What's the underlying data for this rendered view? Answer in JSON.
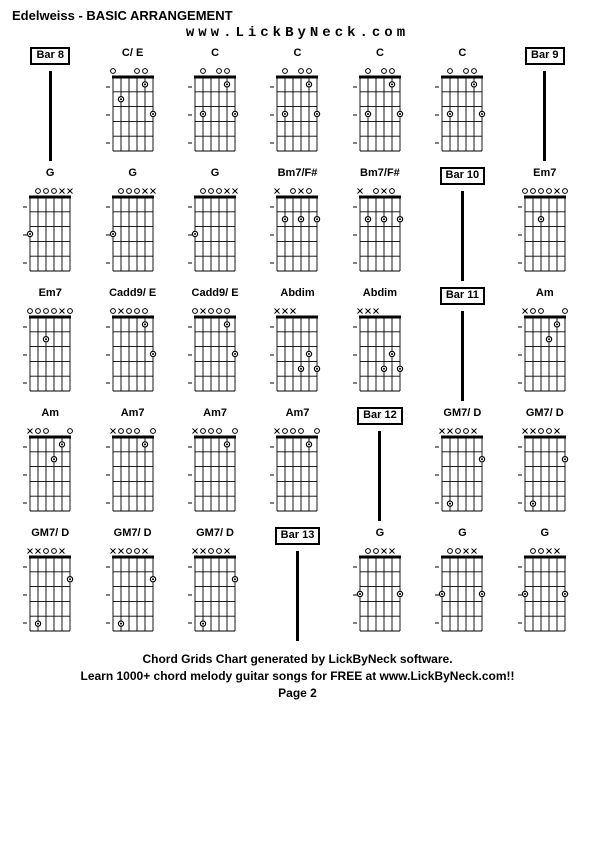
{
  "title": "Edelweiss - BASIC ARRANGEMENT",
  "subtitle": "www.LickByNeck.com",
  "footer1": "Chord Grids Chart generated by LickByNeck software.",
  "footer2": "Learn 1000+ chord melody guitar songs for FREE at www.LickByNeck.com!!",
  "pageNum": "Page 2",
  "style": {
    "cols": 7,
    "rows": 5,
    "frets": 5,
    "strings": 6,
    "dot_radius": 2.6,
    "grid_stroke": "#000000",
    "grid_width": 0.9,
    "nut_width": 3,
    "bg": "#ffffff"
  },
  "cells": [
    {
      "type": "bar",
      "label": "Bar 8"
    },
    {
      "type": "chord",
      "label": "C/ E",
      "top": "O  OO ",
      "dots": [
        [
          5,
          2
        ],
        [
          2,
          1
        ],
        [
          1,
          3
        ]
      ]
    },
    {
      "type": "chord",
      "label": "C",
      "top": " O OO ",
      "dots": [
        [
          5,
          3
        ],
        [
          2,
          1
        ],
        [
          1,
          3
        ]
      ]
    },
    {
      "type": "chord",
      "label": "C",
      "top": " O OO ",
      "dots": [
        [
          5,
          3
        ],
        [
          2,
          1
        ],
        [
          1,
          3
        ]
      ]
    },
    {
      "type": "chord",
      "label": "C",
      "top": " O OO ",
      "dots": [
        [
          5,
          3
        ],
        [
          2,
          1
        ],
        [
          1,
          3
        ]
      ]
    },
    {
      "type": "chord",
      "label": "C",
      "top": " O OO ",
      "dots": [
        [
          5,
          3
        ],
        [
          2,
          1
        ],
        [
          1,
          3
        ]
      ]
    },
    {
      "type": "bar",
      "label": "Bar 9"
    },
    {
      "type": "chord",
      "label": "G",
      "top": " OOOXX",
      "dots": [
        [
          6,
          3
        ]
      ]
    },
    {
      "type": "chord",
      "label": "G",
      "top": " OOOXX",
      "dots": [
        [
          6,
          3
        ]
      ]
    },
    {
      "type": "chord",
      "label": "G",
      "top": " OOOXX",
      "dots": [
        [
          6,
          3
        ]
      ]
    },
    {
      "type": "chord",
      "label": "Bm7/F#",
      "top": "X OXO ",
      "dots": [
        [
          5,
          2
        ],
        [
          3,
          2
        ],
        [
          1,
          2
        ]
      ]
    },
    {
      "type": "chord",
      "label": "Bm7/F#",
      "top": "X OXO ",
      "dots": [
        [
          5,
          2
        ],
        [
          3,
          2
        ],
        [
          1,
          2
        ]
      ]
    },
    {
      "type": "bar",
      "label": "Bar 10"
    },
    {
      "type": "chord",
      "label": "Em7",
      "top": "OOOOXO",
      "dots": [
        [
          4,
          2
        ]
      ]
    },
    {
      "type": "chord",
      "label": "Em7",
      "top": "OOOOXO",
      "dots": [
        [
          4,
          2
        ]
      ]
    },
    {
      "type": "chord",
      "label": "Cadd9/ E",
      "top": "OXOOO ",
      "dots": [
        [
          2,
          1
        ],
        [
          1,
          3
        ]
      ]
    },
    {
      "type": "chord",
      "label": "Cadd9/ E",
      "top": "OXOOO ",
      "dots": [
        [
          2,
          1
        ],
        [
          1,
          3
        ]
      ]
    },
    {
      "type": "chord",
      "label": "Abdim",
      "top": "XXX   ",
      "dots": [
        [
          3,
          4
        ],
        [
          2,
          3
        ],
        [
          1,
          4
        ]
      ]
    },
    {
      "type": "chord",
      "label": "Abdim",
      "top": "XXX   ",
      "dots": [
        [
          3,
          4
        ],
        [
          2,
          3
        ],
        [
          1,
          4
        ]
      ]
    },
    {
      "type": "bar",
      "label": "Bar 11"
    },
    {
      "type": "chord",
      "label": "Am",
      "top": "XOO  O",
      "dots": [
        [
          3,
          2
        ],
        [
          2,
          1
        ]
      ]
    },
    {
      "type": "chord",
      "label": "Am",
      "top": "XOO  O",
      "dots": [
        [
          3,
          2
        ],
        [
          2,
          1
        ]
      ]
    },
    {
      "type": "chord",
      "label": "Am7",
      "top": "XOOO O",
      "dots": [
        [
          2,
          1
        ]
      ]
    },
    {
      "type": "chord",
      "label": "Am7",
      "top": "XOOO O",
      "dots": [
        [
          2,
          1
        ]
      ]
    },
    {
      "type": "chord",
      "label": "Am7",
      "top": "XOOO O",
      "dots": [
        [
          2,
          1
        ]
      ]
    },
    {
      "type": "bar",
      "label": "Bar 12"
    },
    {
      "type": "chord",
      "label": "GM7/ D",
      "top": "XXOOX ",
      "dots": [
        [
          5,
          5
        ],
        [
          1,
          2
        ]
      ]
    },
    {
      "type": "chord",
      "label": "GM7/ D",
      "top": "XXOOX ",
      "dots": [
        [
          5,
          5
        ],
        [
          1,
          2
        ]
      ]
    },
    {
      "type": "chord",
      "label": "GM7/ D",
      "top": "XXOOX ",
      "dots": [
        [
          5,
          5
        ],
        [
          1,
          2
        ]
      ]
    },
    {
      "type": "chord",
      "label": "GM7/ D",
      "top": "XXOOX ",
      "dots": [
        [
          5,
          5
        ],
        [
          1,
          2
        ]
      ]
    },
    {
      "type": "chord",
      "label": "GM7/ D",
      "top": "XXOOX ",
      "dots": [
        [
          5,
          5
        ],
        [
          1,
          2
        ]
      ]
    },
    {
      "type": "bar",
      "label": "Bar 13"
    },
    {
      "type": "chord",
      "label": "G",
      "top": " OOXX ",
      "dots": [
        [
          6,
          3
        ],
        [
          1,
          3
        ]
      ]
    },
    {
      "type": "chord",
      "label": "G",
      "top": " OOXX ",
      "dots": [
        [
          6,
          3
        ],
        [
          1,
          3
        ]
      ]
    },
    {
      "type": "chord",
      "label": "G",
      "top": " OOXX ",
      "dots": [
        [
          6,
          3
        ],
        [
          1,
          3
        ]
      ]
    }
  ]
}
